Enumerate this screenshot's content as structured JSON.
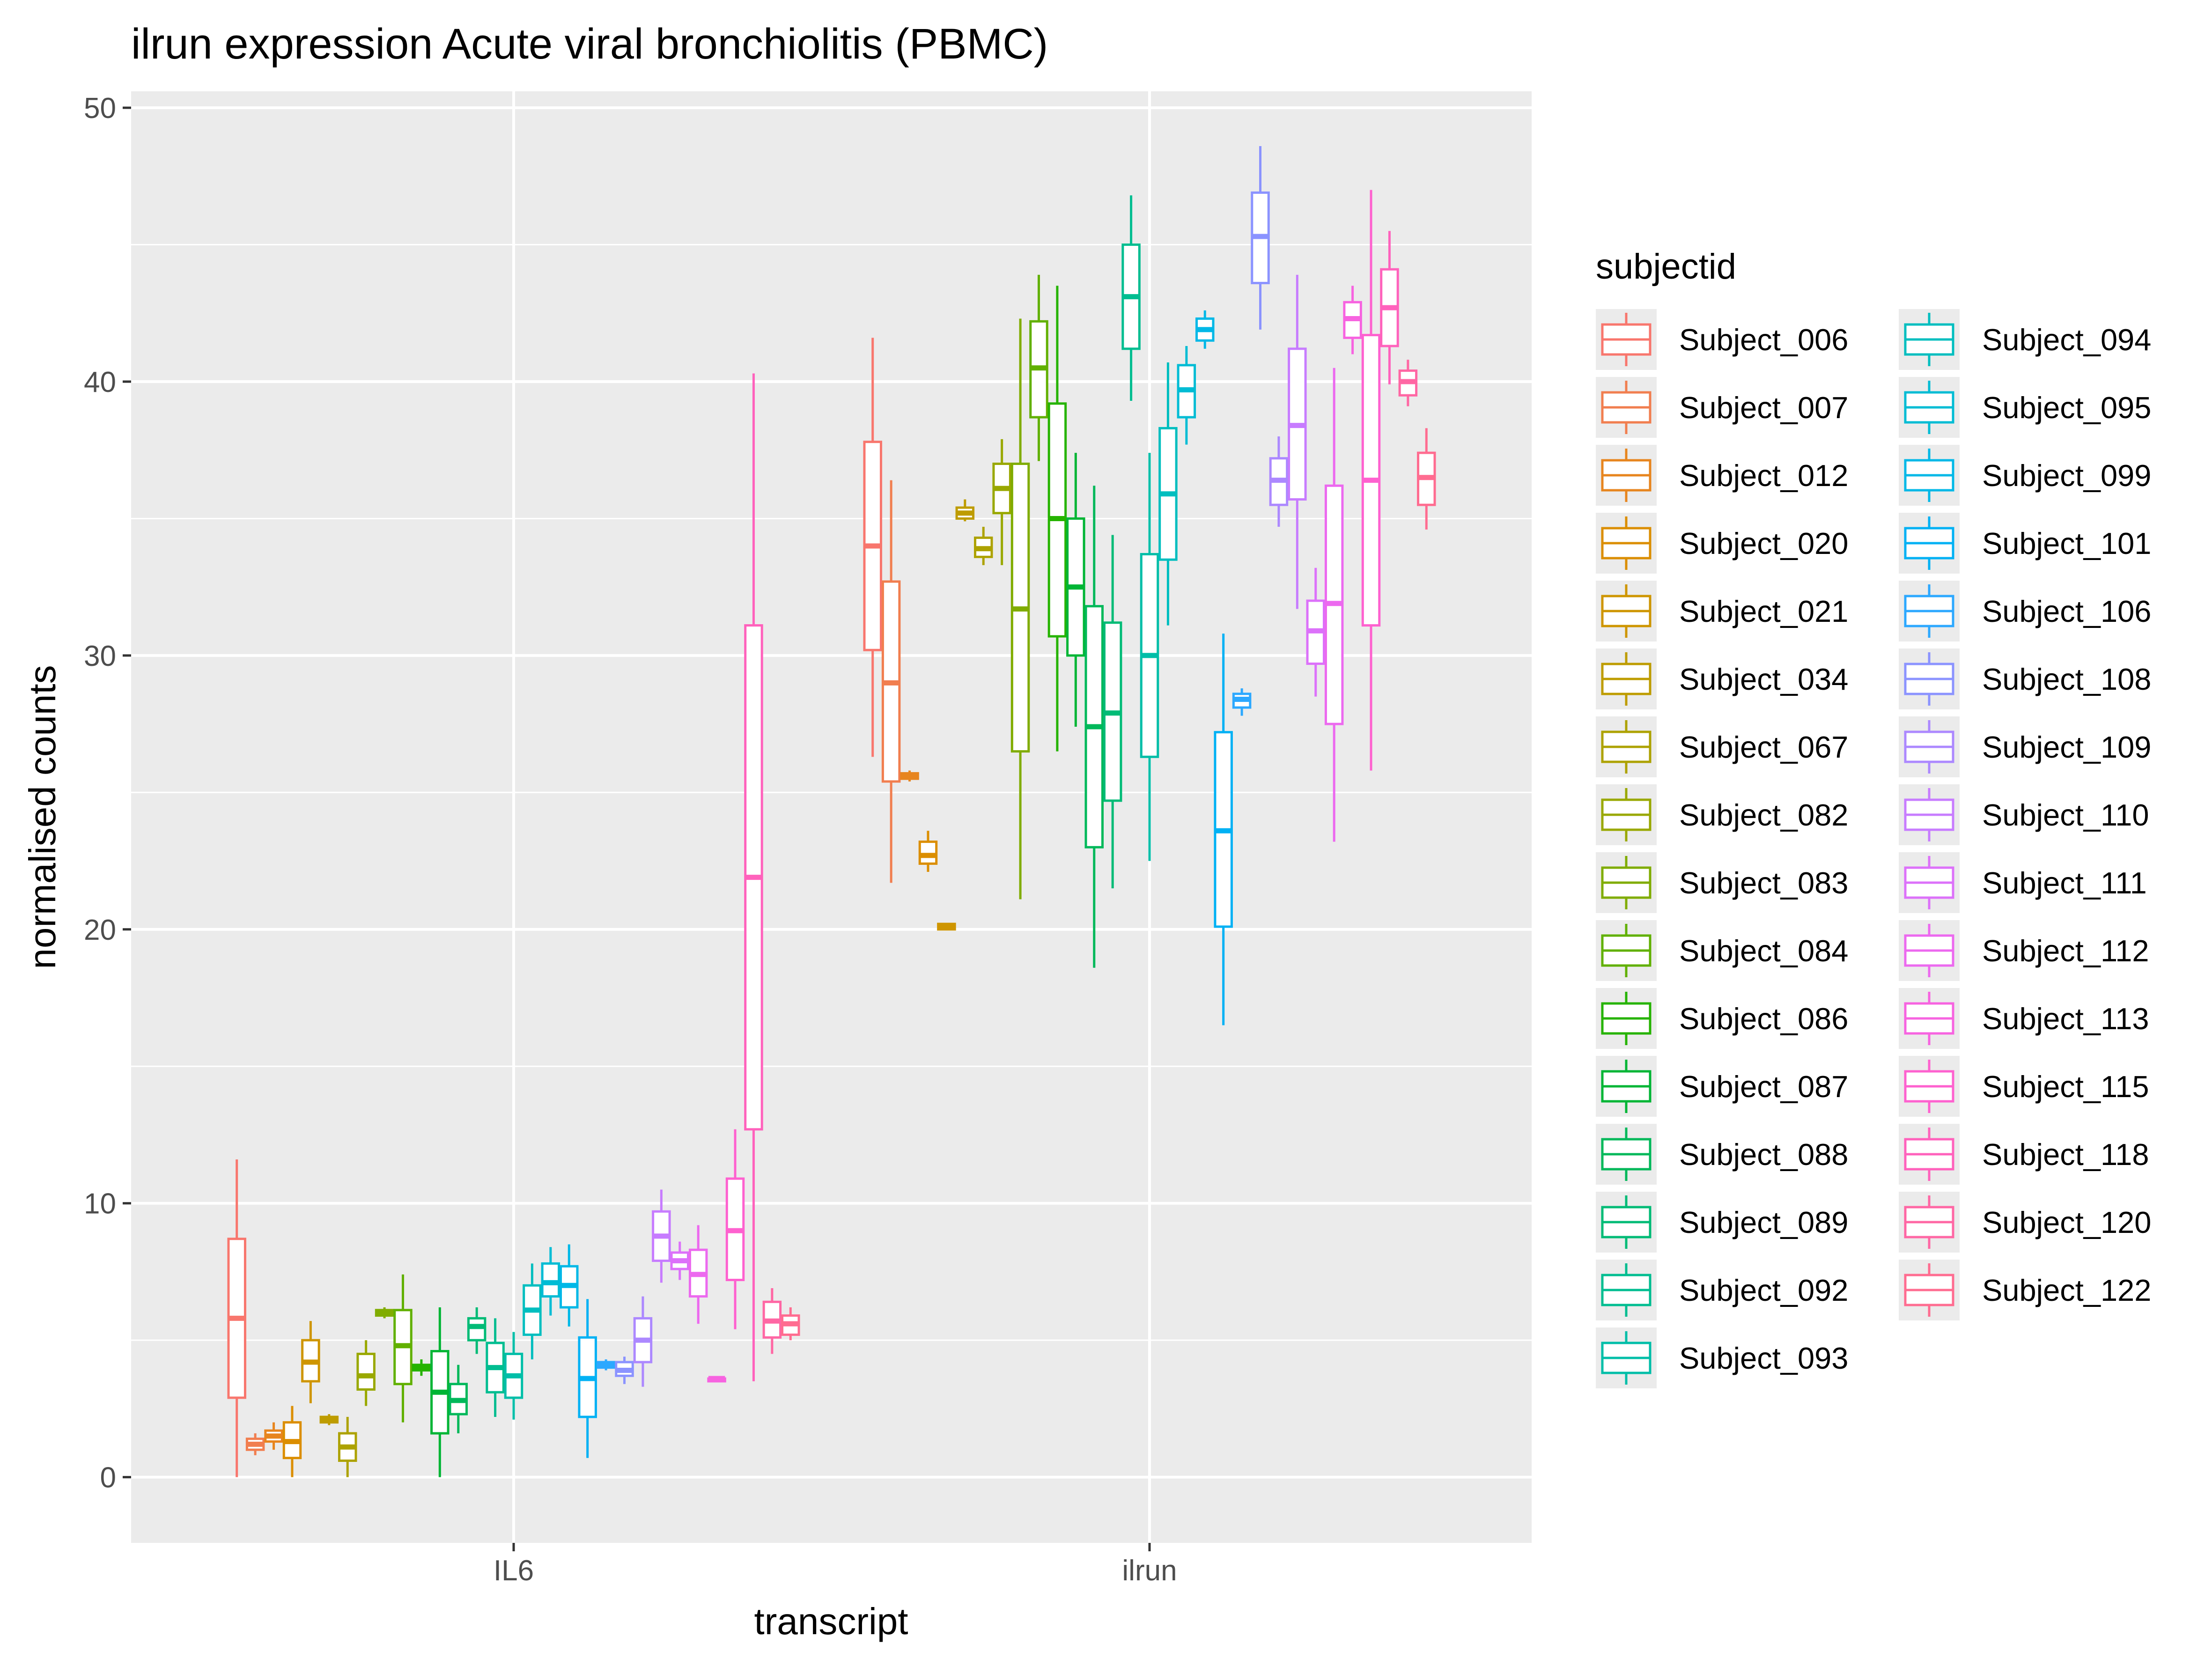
{
  "chart_data": {
    "type": "boxplot",
    "title": "ilrun expression Acute viral bronchiolitis (PBMC)",
    "xlabel": "transcript",
    "ylabel": "normalised counts",
    "ylim": [
      -2.4,
      50.6
    ],
    "y_ticks": [
      0,
      10,
      20,
      30,
      40,
      50
    ],
    "categories": [
      "IL6",
      "ilrun"
    ],
    "legend_title": "subjectid",
    "legend_position": "right",
    "grid": true,
    "series": [
      {
        "name": "Subject_006",
        "color": "#F8766D",
        "boxes": [
          [
            0.0,
            2.9,
            5.8,
            8.7,
            11.6
          ],
          [
            26.3,
            30.2,
            34.0,
            37.8,
            41.6
          ]
        ]
      },
      {
        "name": "Subject_007",
        "color": "#F17E4F",
        "boxes": [
          [
            0.8,
            1.0,
            1.2,
            1.4,
            1.6
          ],
          [
            21.7,
            25.4,
            29.0,
            32.7,
            36.4
          ]
        ]
      },
      {
        "name": "Subject_012",
        "color": "#E7851E",
        "boxes": [
          [
            1.0,
            1.3,
            1.5,
            1.7,
            2.0
          ],
          [
            25.4,
            25.5,
            25.6,
            25.7,
            25.8
          ]
        ]
      },
      {
        "name": "Subject_020",
        "color": "#DB8E00",
        "boxes": [
          [
            0.0,
            0.7,
            1.3,
            2.0,
            2.6
          ],
          [
            22.1,
            22.4,
            22.7,
            23.2,
            23.6
          ]
        ]
      },
      {
        "name": "Subject_021",
        "color": "#CE9500",
        "boxes": [
          [
            2.7,
            3.5,
            4.2,
            5.0,
            5.7
          ],
          [
            20.0,
            20.0,
            20.1,
            20.2,
            20.2
          ]
        ]
      },
      {
        "name": "Subject_034",
        "color": "#BE9C00",
        "boxes": [
          [
            1.9,
            2.0,
            2.1,
            2.2,
            2.3
          ],
          [
            34.9,
            35.0,
            35.2,
            35.4,
            35.7
          ]
        ]
      },
      {
        "name": "Subject_067",
        "color": "#ADA200",
        "boxes": [
          [
            0.0,
            0.6,
            1.1,
            1.6,
            2.2
          ],
          [
            33.3,
            33.6,
            33.9,
            34.3,
            34.7
          ]
        ]
      },
      {
        "name": "Subject_082",
        "color": "#99A800",
        "boxes": [
          [
            2.6,
            3.2,
            3.7,
            4.5,
            5.0
          ],
          [
            33.3,
            35.2,
            36.1,
            37.0,
            37.9
          ]
        ]
      },
      {
        "name": "Subject_083",
        "color": "#80AC00",
        "boxes": [
          [
            5.8,
            5.9,
            6.0,
            6.1,
            6.2
          ],
          [
            21.1,
            26.5,
            31.7,
            37.0,
            42.3
          ]
        ]
      },
      {
        "name": "Subject_084",
        "color": "#61B000",
        "boxes": [
          [
            2.0,
            3.4,
            4.8,
            6.1,
            7.4
          ],
          [
            37.1,
            38.7,
            40.5,
            42.2,
            43.9
          ]
        ]
      },
      {
        "name": "Subject_086",
        "color": "#26B300",
        "boxes": [
          [
            3.7,
            3.9,
            4.0,
            4.1,
            4.3
          ],
          [
            26.5,
            30.7,
            35.0,
            39.2,
            43.5
          ]
        ]
      },
      {
        "name": "Subject_087",
        "color": "#00B535",
        "boxes": [
          [
            0.0,
            1.6,
            3.1,
            4.6,
            6.2
          ],
          [
            27.4,
            30.0,
            32.5,
            35.0,
            37.4
          ]
        ]
      },
      {
        "name": "Subject_088",
        "color": "#00B85A",
        "boxes": [
          [
            1.6,
            2.3,
            2.8,
            3.4,
            4.1
          ],
          [
            18.6,
            23.0,
            27.4,
            31.8,
            36.2
          ]
        ]
      },
      {
        "name": "Subject_089",
        "color": "#00BB76",
        "boxes": [
          [
            4.5,
            5.0,
            5.5,
            5.8,
            6.2
          ],
          [
            21.5,
            24.7,
            27.9,
            31.2,
            34.4
          ]
        ]
      },
      {
        "name": "Subject_092",
        "color": "#00BD90",
        "boxes": [
          [
            2.2,
            3.1,
            4.0,
            4.9,
            5.8
          ],
          [
            39.3,
            41.2,
            43.1,
            45.0,
            46.8
          ]
        ]
      },
      {
        "name": "Subject_093",
        "color": "#00BEA8",
        "boxes": [
          [
            2.1,
            2.9,
            3.7,
            4.5,
            5.3
          ],
          [
            22.5,
            26.3,
            30.0,
            33.7,
            37.4
          ]
        ]
      },
      {
        "name": "Subject_094",
        "color": "#00BEBF",
        "boxes": [
          [
            4.3,
            5.2,
            6.1,
            7.0,
            7.8
          ],
          [
            31.1,
            33.5,
            35.9,
            38.3,
            40.7
          ]
        ]
      },
      {
        "name": "Subject_095",
        "color": "#00BCD4",
        "boxes": [
          [
            5.9,
            6.6,
            7.1,
            7.8,
            8.4
          ],
          [
            37.7,
            38.7,
            39.7,
            40.6,
            41.3
          ]
        ]
      },
      {
        "name": "Subject_099",
        "color": "#00B8E7",
        "boxes": [
          [
            5.5,
            6.2,
            7.0,
            7.7,
            8.5
          ],
          [
            41.2,
            41.5,
            41.9,
            42.3,
            42.6
          ]
        ]
      },
      {
        "name": "Subject_101",
        "color": "#00B1F4",
        "boxes": [
          [
            0.7,
            2.2,
            3.6,
            5.1,
            6.5
          ],
          [
            16.5,
            20.1,
            23.6,
            27.2,
            30.8
          ]
        ]
      },
      {
        "name": "Subject_106",
        "color": "#2CA8FF",
        "boxes": [
          [
            3.9,
            4.0,
            4.1,
            4.2,
            4.3
          ],
          [
            27.8,
            28.1,
            28.4,
            28.6,
            28.8
          ]
        ]
      },
      {
        "name": "Subject_108",
        "color": "#8B93FF",
        "boxes": [
          [
            3.4,
            3.7,
            3.9,
            4.2,
            4.4
          ],
          [
            41.9,
            43.6,
            45.3,
            46.9,
            48.6
          ]
        ]
      },
      {
        "name": "Subject_109",
        "color": "#AC88FF",
        "boxes": [
          [
            3.3,
            4.2,
            5.0,
            5.8,
            6.6
          ],
          [
            34.7,
            35.5,
            36.4,
            37.2,
            38.0
          ]
        ]
      },
      {
        "name": "Subject_110",
        "color": "#C77CFF",
        "boxes": [
          [
            7.1,
            7.9,
            8.8,
            9.7,
            10.5
          ],
          [
            31.7,
            35.7,
            38.4,
            41.2,
            43.9
          ]
        ]
      },
      {
        "name": "Subject_111",
        "color": "#DC71FA",
        "boxes": [
          [
            7.2,
            7.6,
            7.9,
            8.2,
            8.6
          ],
          [
            28.5,
            29.7,
            30.9,
            32.0,
            33.2
          ]
        ]
      },
      {
        "name": "Subject_112",
        "color": "#EC69EF",
        "boxes": [
          [
            5.6,
            6.6,
            7.4,
            8.3,
            9.2
          ],
          [
            23.2,
            27.5,
            31.9,
            36.2,
            40.5
          ]
        ]
      },
      {
        "name": "Subject_113",
        "color": "#F763E0",
        "boxes": [
          [
            3.5,
            3.5,
            3.6,
            3.6,
            3.6
          ],
          [
            41.0,
            41.6,
            42.3,
            42.9,
            43.5
          ]
        ]
      },
      {
        "name": "Subject_115",
        "color": "#FE61CF",
        "boxes": [
          [
            5.4,
            7.2,
            9.0,
            10.9,
            12.7
          ],
          [
            25.8,
            31.1,
            36.4,
            41.7,
            47.0
          ]
        ]
      },
      {
        "name": "Subject_118",
        "color": "#FF62BC",
        "boxes": [
          [
            3.5,
            12.7,
            21.9,
            31.1,
            40.3
          ],
          [
            39.9,
            41.3,
            42.7,
            44.1,
            45.5
          ]
        ]
      },
      {
        "name": "Subject_120",
        "color": "#FF67A4",
        "boxes": [
          [
            4.5,
            5.1,
            5.7,
            6.4,
            6.9
          ],
          [
            39.1,
            39.5,
            40.0,
            40.4,
            40.8
          ]
        ]
      },
      {
        "name": "Subject_122",
        "color": "#FF6C90",
        "boxes": [
          [
            5.0,
            5.2,
            5.6,
            5.9,
            6.2
          ],
          [
            34.6,
            35.5,
            36.5,
            37.4,
            38.3
          ]
        ]
      }
    ]
  }
}
